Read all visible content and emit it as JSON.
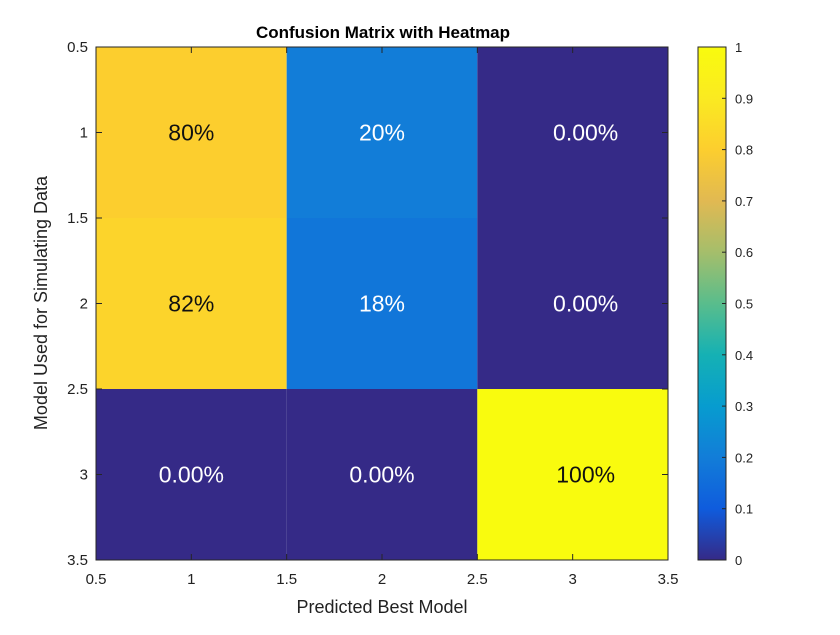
{
  "chart_data": {
    "type": "heatmap",
    "title": "Confusion Matrix with Heatmap",
    "xlabel": "Predicted Best Model",
    "ylabel": "Model Used for Simulating Data",
    "xlim": [
      0.5,
      3.5
    ],
    "ylim": [
      0.5,
      3.5
    ],
    "x_ticks": [
      "0.5",
      "1",
      "1.5",
      "2",
      "2.5",
      "3",
      "3.5"
    ],
    "y_ticks": [
      "0.5",
      "1",
      "1.5",
      "2",
      "2.5",
      "3",
      "3.5"
    ],
    "colormap": "parula",
    "colorbar_range": [
      0,
      1
    ],
    "colorbar_ticks": [
      "0",
      "0.1",
      "0.2",
      "0.3",
      "0.4",
      "0.5",
      "0.6",
      "0.7",
      "0.8",
      "0.9",
      "1"
    ],
    "rows": [
      1,
      2,
      3
    ],
    "cols": [
      1,
      2,
      3
    ],
    "values": [
      [
        0.8,
        0.2,
        0.0
      ],
      [
        0.82,
        0.18,
        0.0
      ],
      [
        0.0,
        0.0,
        1.0
      ]
    ],
    "labels": [
      [
        "80%",
        "20%",
        "0.00%"
      ],
      [
        "82%",
        "18%",
        "0.00%"
      ],
      [
        "0.00%",
        "0.00%",
        "100%"
      ]
    ]
  }
}
